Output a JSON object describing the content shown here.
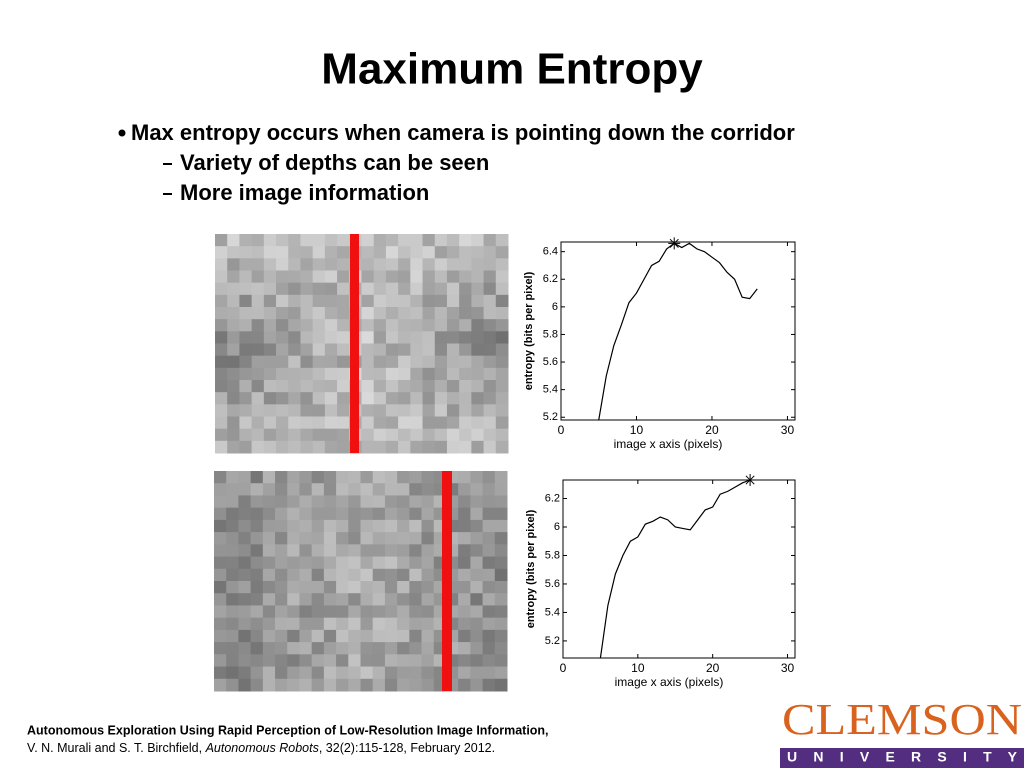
{
  "title": "Maximum Entropy",
  "bullets": [
    {
      "text": "Max entropy occurs when camera is pointing down the corridor",
      "sub": [
        "Variety of depths can be seen",
        "More image information"
      ]
    }
  ],
  "citation": {
    "line1": "Autonomous Exploration Using Rapid Perception of Low-Resolution Image Information,",
    "authors": "V. N. Murali and S. T. Birchfield,",
    "journal": "Autonomous Robots",
    "rest": ", 32(2):115-128, February 2012."
  },
  "logo": {
    "name": "CLEMSON",
    "sub": "U N I V E R S I T Y"
  },
  "chart_data": [
    {
      "type": "line",
      "xlabel": "image x axis (pixels)",
      "ylabel": "entropy (bits per pixel)",
      "color": "#000000",
      "x": [
        5,
        6,
        7,
        8,
        9,
        10,
        11,
        12,
        13,
        14,
        15,
        16,
        17,
        18,
        19,
        20,
        21,
        22,
        23,
        24,
        25,
        26
      ],
      "values": [
        5.18,
        5.5,
        5.72,
        5.87,
        6.03,
        6.1,
        6.2,
        6.3,
        6.33,
        6.42,
        6.46,
        6.43,
        6.46,
        6.42,
        6.4,
        6.36,
        6.32,
        6.25,
        6.2,
        6.07,
        6.06,
        6.13
      ],
      "peak": {
        "x": 15,
        "y": 6.46
      },
      "xlim": [
        0,
        31
      ],
      "ylim": [
        5.18,
        6.47
      ],
      "xticks": [
        0,
        10,
        20,
        30
      ],
      "yticks": [
        5.2,
        5.4,
        5.6,
        5.8,
        6,
        6.2,
        6.4
      ]
    },
    {
      "type": "line",
      "xlabel": "image x axis (pixels)",
      "ylabel": "entropy (bits per pixel)",
      "color": "#000000",
      "x": [
        5,
        6,
        7,
        8,
        9,
        10,
        11,
        12,
        13,
        14,
        15,
        16,
        17,
        18,
        19,
        20,
        21,
        22,
        23,
        24,
        25
      ],
      "values": [
        5.08,
        5.45,
        5.67,
        5.8,
        5.9,
        5.93,
        6.02,
        6.04,
        6.07,
        6.05,
        6.0,
        5.99,
        5.98,
        6.05,
        6.12,
        6.14,
        6.23,
        6.25,
        6.28,
        6.31,
        6.33
      ],
      "peak": {
        "x": 25,
        "y": 6.33
      },
      "xlim": [
        0,
        31
      ],
      "ylim": [
        5.08,
        6.33
      ],
      "xticks": [
        0,
        10,
        20,
        30
      ],
      "yticks": [
        5.2,
        5.4,
        5.6,
        5.8,
        6,
        6.2
      ]
    }
  ]
}
